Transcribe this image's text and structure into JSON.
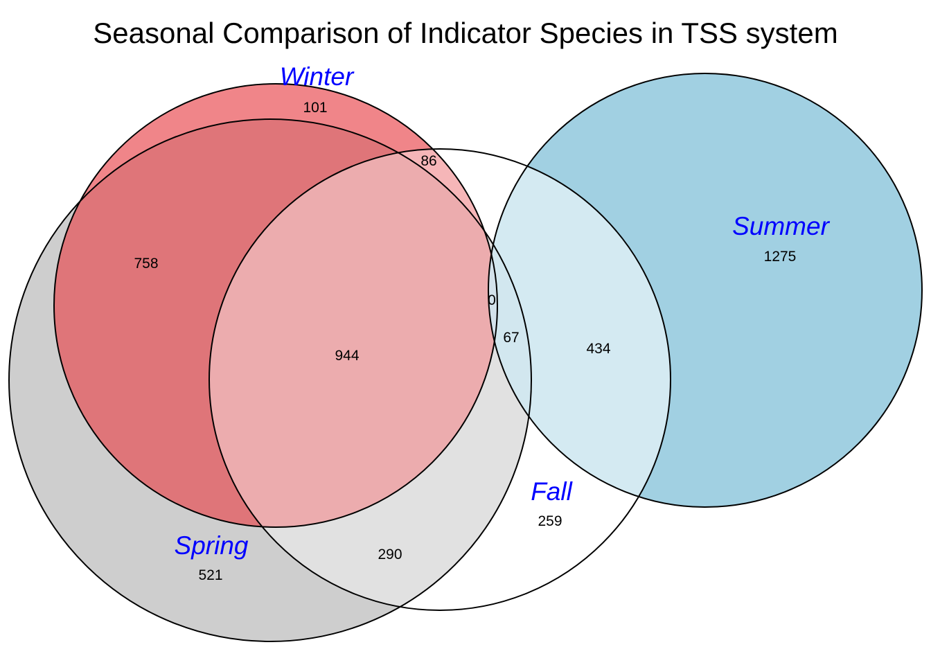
{
  "title": "Seasonal Comparison of Indicator Species in TSS system",
  "colors": {
    "label_text": "#0000FF",
    "winter_fill": "#E8474E",
    "spring_fill": "#BDBDBD",
    "fall_fill": "#FFFFFF",
    "summer_fill": "#8AC4DB",
    "outline": "#000000"
  },
  "sets": {
    "winter": {
      "label": "Winter"
    },
    "spring": {
      "label": "Spring"
    },
    "fall": {
      "label": "Fall"
    },
    "summer": {
      "label": "Summer"
    }
  },
  "regions": {
    "winter_only": "101",
    "winter_fall": "86",
    "winter_spring": "758",
    "winter_spring_fall": "944",
    "winter_spring_fall_summer": "0",
    "spring_fall_summer": "67",
    "fall_summer": "434",
    "summer_only": "1275",
    "fall_only": "259",
    "spring_only": "521",
    "spring_fall": "290"
  }
}
